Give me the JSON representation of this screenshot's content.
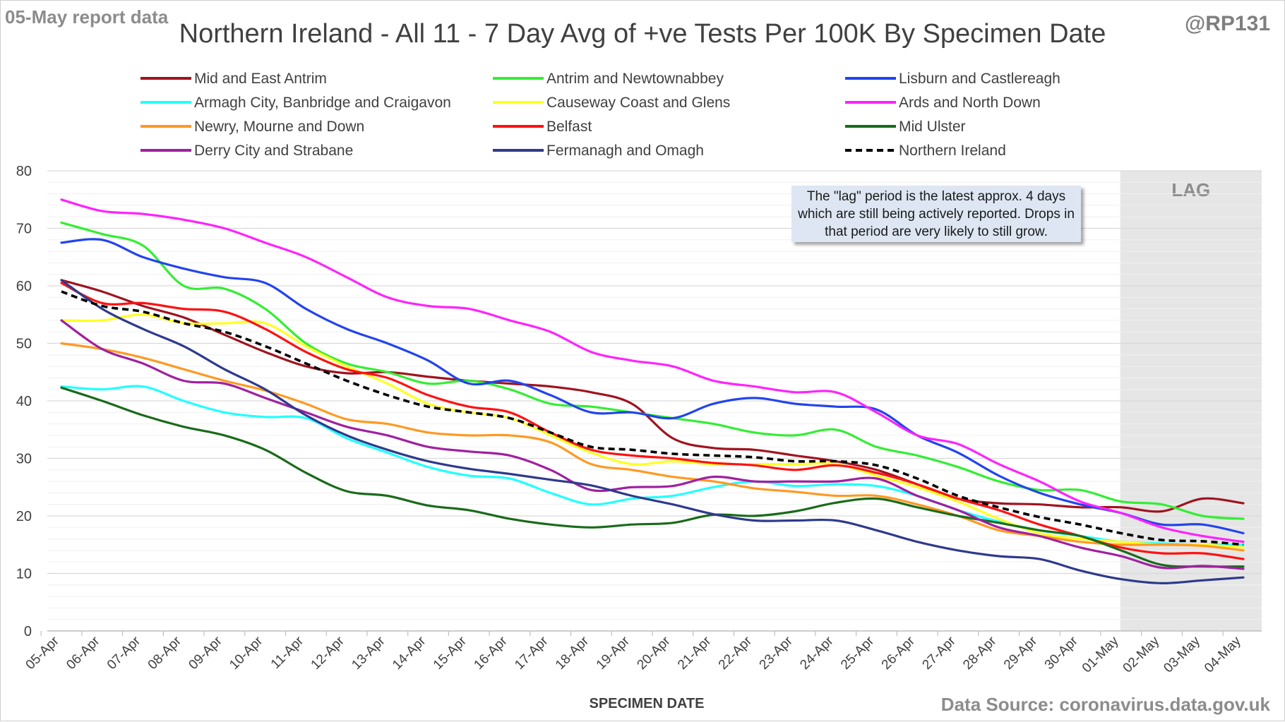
{
  "report_tag": "05-May report data",
  "handle": "@RP131",
  "source": "Data Source: coronavirus.data.gov.uk",
  "lag_note": "The \"lag\" period is the latest approx. 4 days which are still being actively reported. Drops in that period are very likely to still grow.",
  "lag_label": "LAG",
  "chart_data": {
    "type": "line",
    "title": "Northern Ireland - All 11 - 7 Day Avg of +ve Tests Per 100K By Specimen Date",
    "xlabel": "SPECIMEN DATE",
    "ylabel": "",
    "ylim": [
      0,
      80
    ],
    "yticks": [
      0,
      10,
      20,
      30,
      40,
      50,
      60,
      70,
      80
    ],
    "grid": true,
    "legend_position": "top",
    "lag_region": {
      "from": "01-May",
      "to": "04-May",
      "label": "LAG"
    },
    "categories": [
      "05-Apr",
      "06-Apr",
      "07-Apr",
      "08-Apr",
      "09-Apr",
      "10-Apr",
      "11-Apr",
      "12-Apr",
      "13-Apr",
      "14-Apr",
      "15-Apr",
      "16-Apr",
      "17-Apr",
      "18-Apr",
      "19-Apr",
      "20-Apr",
      "21-Apr",
      "22-Apr",
      "23-Apr",
      "24-Apr",
      "25-Apr",
      "26-Apr",
      "27-Apr",
      "28-Apr",
      "29-Apr",
      "30-Apr",
      "01-May",
      "02-May",
      "03-May",
      "04-May"
    ],
    "series": [
      {
        "name": "Mid and East Antrim",
        "color": "#a0131f",
        "dashed": false,
        "values": [
          61,
          59,
          56.5,
          54.5,
          51.5,
          48.5,
          46,
          44.8,
          45,
          44.2,
          43.5,
          43,
          42.5,
          41.5,
          39.5,
          33.5,
          31.8,
          31.5,
          30.5,
          29.5,
          28,
          25.5,
          23,
          22.2,
          22,
          21.5,
          21.5,
          20.8,
          23,
          22.2
        ]
      },
      {
        "name": "Antrim and Newtownabbey",
        "color": "#33ee33",
        "dashed": false,
        "values": [
          71,
          69,
          67,
          60,
          59.5,
          56,
          50,
          46.5,
          45,
          43,
          43.5,
          42,
          39.5,
          39,
          38,
          37,
          36,
          34.5,
          34,
          35,
          32,
          30.5,
          28.5,
          26,
          24.5,
          24.5,
          22.5,
          22,
          20,
          19.5
        ]
      },
      {
        "name": "Lisburn and Castlereagh",
        "color": "#2244ee",
        "dashed": false,
        "values": [
          67.5,
          68,
          65,
          63,
          61.5,
          60.5,
          56,
          52.5,
          50,
          47,
          43,
          43.5,
          41,
          38,
          38,
          37,
          39.5,
          40.5,
          39.5,
          39,
          38.5,
          34,
          31,
          27,
          24,
          22,
          20.5,
          18.5,
          18.5,
          17
        ]
      },
      {
        "name": "Armagh City, Banbridge and Craigavon",
        "color": "#22ffff",
        "dashed": false,
        "values": [
          42.5,
          42,
          42.5,
          40,
          38,
          37.2,
          37,
          33.5,
          31,
          28.5,
          27,
          26.5,
          24,
          22,
          23,
          23.5,
          25,
          26,
          25.2,
          25.5,
          25.2,
          23.5,
          21,
          19,
          17.5,
          16.5,
          15.5,
          15.2,
          15,
          15
        ]
      },
      {
        "name": "Causeway Coast and Glens",
        "color": "#ffff22",
        "dashed": false,
        "values": [
          54,
          54,
          55,
          53.5,
          53.5,
          53.5,
          49.5,
          46,
          43,
          39.5,
          38,
          37,
          34,
          31,
          29,
          29.5,
          29,
          29,
          29,
          29,
          27,
          25,
          22.5,
          19.5,
          17,
          16,
          15.5,
          15,
          15,
          14.5
        ]
      },
      {
        "name": "Ards and North Down",
        "color": "#ff22ff",
        "dashed": false,
        "values": [
          75,
          73,
          72.5,
          71.5,
          70,
          67.5,
          65,
          61.5,
          58,
          56.5,
          56,
          54,
          52,
          48.5,
          47,
          46,
          43.5,
          42.5,
          41.5,
          41.5,
          38,
          34,
          32.5,
          29,
          26,
          22.5,
          20.5,
          18,
          16.5,
          15.5
        ]
      },
      {
        "name": "Newry, Mourne and Down",
        "color": "#ff9922",
        "dashed": false,
        "values": [
          50,
          49,
          47.5,
          45.5,
          43.5,
          41.8,
          39.5,
          36.8,
          36,
          34.5,
          34,
          34,
          32.8,
          29,
          28,
          26.8,
          26,
          24.8,
          24.2,
          23.5,
          23.5,
          22,
          20,
          17.5,
          16.5,
          15.5,
          15,
          15,
          14.8,
          14
        ]
      },
      {
        "name": "Belfast",
        "color": "#ff1111",
        "dashed": false,
        "values": [
          60.5,
          57,
          57,
          56,
          55.5,
          52.5,
          48.5,
          45.5,
          44,
          41,
          39,
          38,
          34.5,
          31.5,
          30.5,
          30,
          29.2,
          28.8,
          28,
          28.8,
          27.5,
          25.5,
          23,
          21,
          18.5,
          16.5,
          14.5,
          13.5,
          13.5,
          12.5
        ]
      },
      {
        "name": "Mid Ulster",
        "color": "#1a6b1a",
        "dashed": false,
        "values": [
          42.3,
          40,
          37.5,
          35.5,
          34,
          31.5,
          27.5,
          24.3,
          23.5,
          21.8,
          21,
          19.5,
          18.5,
          18,
          18.5,
          18.8,
          20.2,
          20,
          20.8,
          22.3,
          23,
          21.5,
          20,
          18.8,
          17.5,
          16.5,
          14,
          11.5,
          11.2,
          11.2
        ]
      },
      {
        "name": "Derry City and Strabane",
        "color": "#a020a0",
        "dashed": false,
        "values": [
          54,
          49,
          46.5,
          43.5,
          43,
          40.5,
          38,
          35.5,
          34,
          32,
          31.2,
          30.5,
          28,
          24.5,
          25,
          25.2,
          26.8,
          26,
          26,
          26,
          26.5,
          23.5,
          21,
          18,
          16.5,
          14.5,
          13,
          11,
          11.3,
          10.8
        ]
      },
      {
        "name": "Fermanagh and Omagh",
        "color": "#2e3a8c",
        "dashed": false,
        "values": [
          61,
          56,
          52.5,
          49.5,
          45.5,
          42,
          37.5,
          34,
          31.5,
          29.5,
          28.2,
          27.3,
          26.3,
          25.3,
          23.5,
          22,
          20.3,
          19.2,
          19.2,
          19.2,
          17.5,
          15.5,
          14,
          13,
          12.5,
          10.5,
          9,
          8.3,
          8.8,
          9.3
        ]
      },
      {
        "name": "Northern Ireland",
        "color": "#000000",
        "dashed": true,
        "values": [
          59,
          56.5,
          55.5,
          53.5,
          52,
          49.5,
          46.5,
          43.5,
          41,
          39,
          38,
          37,
          34.5,
          32,
          31.5,
          30.8,
          30.5,
          30.2,
          29.5,
          29.5,
          28.8,
          26.5,
          23.5,
          21.5,
          19.8,
          18.5,
          17,
          15.8,
          15.6,
          15
        ]
      }
    ]
  }
}
